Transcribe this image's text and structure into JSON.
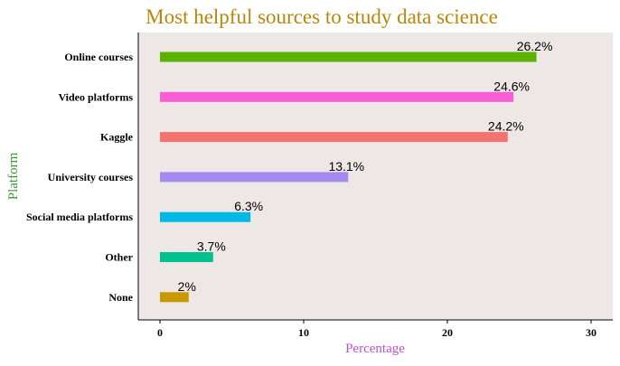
{
  "chart_data": {
    "type": "bar",
    "orientation": "horizontal",
    "title": "Most helpful sources to study data science",
    "xlabel": "Percentage",
    "ylabel": "Platform",
    "xlim": [
      0,
      30
    ],
    "xticks": [
      0,
      10,
      20,
      30
    ],
    "grid": false,
    "categories": [
      "Online courses",
      "Video platforms",
      "Kaggle",
      "University courses",
      "Social media platforms",
      "Other",
      "None"
    ],
    "values": [
      26.2,
      24.6,
      24.2,
      13.1,
      6.3,
      3.7,
      2
    ],
    "value_labels": [
      "26.2%",
      "24.6%",
      "24.2%",
      "13.1%",
      "6.3%",
      "3.7%",
      "2%"
    ],
    "bar_colors": [
      "#5bb300",
      "#fa5ed7",
      "#f27370",
      "#a58af2",
      "#00b8e6",
      "#00c08d",
      "#c89a00"
    ]
  },
  "colors": {
    "title": "#b8860b",
    "xlabel": "#c050c8",
    "ylabel": "#3a9a3a",
    "panel_background": "#ede8e6"
  }
}
